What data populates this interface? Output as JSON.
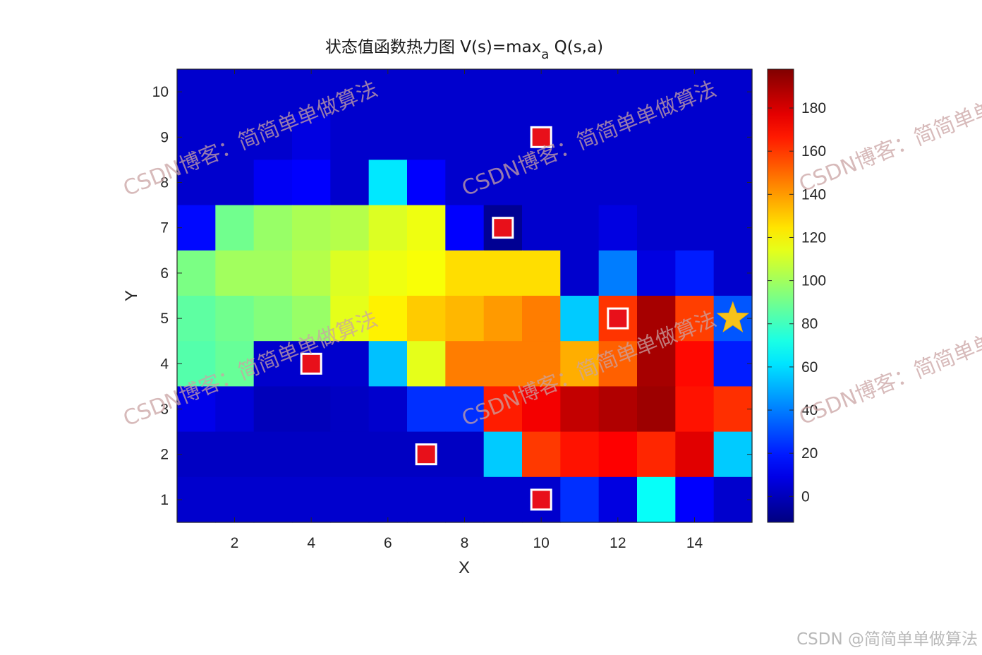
{
  "chart_data": {
    "type": "heatmap",
    "title": "状态值函数热力图 V(s)=max",
    "title_subscript": "a",
    "title_suffix": " Q(s,a)",
    "xlabel": "X",
    "ylabel": "Y",
    "xlim": [
      0.5,
      15.5
    ],
    "ylim": [
      0.5,
      10.5
    ],
    "x_ticks": [
      2,
      4,
      6,
      8,
      10,
      12,
      14
    ],
    "y_ticks": [
      1,
      2,
      3,
      4,
      5,
      6,
      7,
      8,
      9,
      10
    ],
    "colormap": "jet",
    "clim": [
      -12,
      198
    ],
    "colorbar_ticks": [
      0,
      20,
      40,
      60,
      80,
      100,
      120,
      140,
      160,
      180
    ],
    "rows_y10_to_y1": [
      [
        4,
        4,
        4,
        4,
        4,
        4,
        4,
        4,
        4,
        4,
        4,
        4,
        4,
        4,
        4
      ],
      [
        4,
        4,
        4,
        8,
        4,
        4,
        4,
        4,
        4,
        4,
        4,
        4,
        4,
        4,
        4
      ],
      [
        4,
        4,
        12,
        14,
        4,
        62,
        14,
        4,
        4,
        4,
        4,
        4,
        4,
        4,
        4
      ],
      [
        16,
        90,
        98,
        102,
        104,
        112,
        116,
        14,
        -8,
        4,
        4,
        8,
        4,
        4,
        4
      ],
      [
        92,
        100,
        100,
        104,
        112,
        116,
        118,
        126,
        126,
        126,
        4,
        40,
        8,
        20,
        4
      ],
      [
        86,
        90,
        94,
        98,
        114,
        122,
        130,
        134,
        140,
        146,
        56,
        161,
        190,
        159,
        32
      ],
      [
        84,
        88,
        4,
        4,
        4,
        54,
        114,
        146,
        146,
        146,
        136,
        152,
        190,
        170,
        20
      ],
      [
        10,
        6,
        0,
        0,
        2,
        4,
        24,
        24,
        166,
        174,
        184,
        188,
        192,
        168,
        162
      ],
      [
        2,
        2,
        2,
        2,
        2,
        2,
        2,
        2,
        56,
        160,
        168,
        172,
        164,
        178,
        56
      ],
      [
        4,
        4,
        4,
        4,
        4,
        4,
        4,
        4,
        4,
        4,
        24,
        8,
        68,
        14,
        4
      ]
    ],
    "obstacles": [
      {
        "x": 10,
        "y": 9
      },
      {
        "x": 9,
        "y": 7
      },
      {
        "x": 12,
        "y": 5
      },
      {
        "x": 4,
        "y": 4
      },
      {
        "x": 7,
        "y": 2
      },
      {
        "x": 10,
        "y": 1
      }
    ],
    "goal": {
      "x": 15,
      "y": 5
    }
  },
  "watermark": {
    "blog": "CSDN博客：",
    "author": "简简单单做算法"
  },
  "credit": "CSDN @简简单单做算法"
}
